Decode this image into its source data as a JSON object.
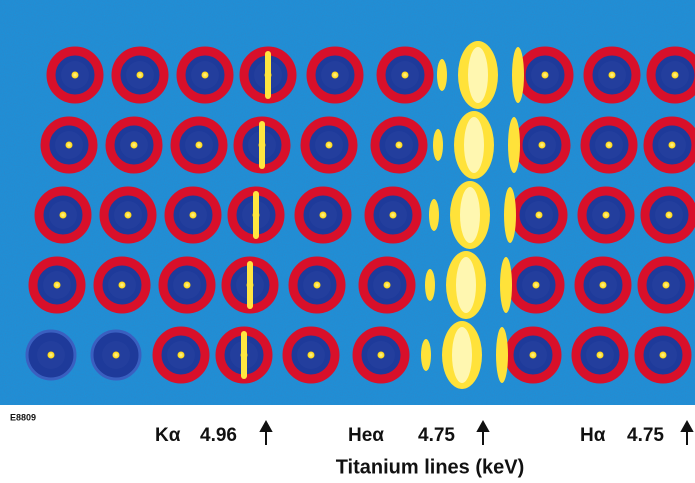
{
  "figure_id": "E8809",
  "lines": [
    {
      "name": "Kα",
      "energy": "4.96"
    },
    {
      "name": "Heα",
      "energy": "4.75"
    },
    {
      "name": "Hα",
      "energy": "4.75"
    }
  ],
  "axis_title": "Titanium lines (keV)"
}
